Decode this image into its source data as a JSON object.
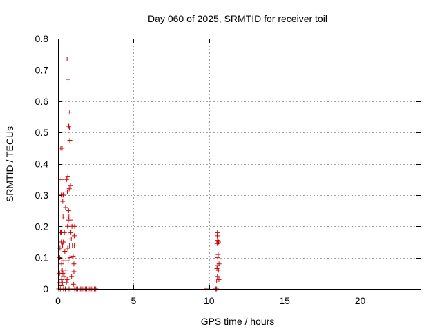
{
  "chart_data": {
    "type": "scatter",
    "title": "Day 060 of 2025, SRMTID for receiver toil",
    "xlabel": "GPS time / hours",
    "ylabel": "SRMTID / TECUs",
    "xlim": [
      0,
      24
    ],
    "ylim": [
      0,
      0.8
    ],
    "x_ticks": [
      0,
      5,
      10,
      15,
      20
    ],
    "x_tick_labels": [
      "0",
      "5",
      "10",
      "15",
      "20"
    ],
    "y_ticks": [
      0,
      0.1,
      0.2,
      0.3,
      0.4,
      0.5,
      0.6,
      0.7,
      0.8
    ],
    "y_tick_labels": [
      "0",
      "0.1",
      "0.2",
      "0.3",
      "0.4",
      "0.5",
      "0.6",
      "0.7",
      "0.8"
    ],
    "grid": true,
    "marker": "plus",
    "series_color": "#cc0000",
    "series": [
      {
        "points": [
          [
            0.05,
            0.0
          ],
          [
            0.08,
            0.02
          ],
          [
            0.1,
            0.05
          ],
          [
            0.12,
            0.1
          ],
          [
            0.13,
            0.13
          ],
          [
            0.15,
            0.0
          ],
          [
            0.16,
            0.18
          ],
          [
            0.18,
            0.45
          ],
          [
            0.2,
            0.35
          ],
          [
            0.2,
            0.01
          ],
          [
            0.22,
            0.03
          ],
          [
            0.22,
            0.08
          ],
          [
            0.24,
            0.15
          ],
          [
            0.25,
            0.18
          ],
          [
            0.26,
            0.3
          ],
          [
            0.27,
            0.45
          ],
          [
            0.28,
            0.06
          ],
          [
            0.29,
            0.02
          ],
          [
            0.3,
            0.14
          ],
          [
            0.31,
            0.28
          ],
          [
            0.32,
            0.05
          ],
          [
            0.33,
            0.23
          ],
          [
            0.34,
            0.3
          ],
          [
            0.35,
            0.15
          ],
          [
            0.36,
            0.0
          ],
          [
            0.38,
            0.09
          ],
          [
            0.4,
            0.04
          ],
          [
            0.42,
            0.18
          ],
          [
            0.45,
            0.12
          ],
          [
            0.48,
            0.0
          ],
          [
            0.5,
            0.26
          ],
          [
            0.52,
            0.06
          ],
          [
            0.55,
            0.02
          ],
          [
            0.58,
            0.35
          ],
          [
            0.6,
            0.03
          ],
          [
            0.6,
            0.735
          ],
          [
            0.62,
            0.31
          ],
          [
            0.63,
            0.2
          ],
          [
            0.64,
            0.13
          ],
          [
            0.65,
            0.36
          ],
          [
            0.66,
            0.67
          ],
          [
            0.67,
            0.09
          ],
          [
            0.68,
            0.22
          ],
          [
            0.7,
            0.25
          ],
          [
            0.71,
            0.52
          ],
          [
            0.72,
            0.23
          ],
          [
            0.73,
            0.0
          ],
          [
            0.74,
            0.32
          ],
          [
            0.75,
            0.515
          ],
          [
            0.76,
            0.14
          ],
          [
            0.77,
            0.565
          ],
          [
            0.78,
            0.475
          ],
          [
            0.79,
            0.1
          ],
          [
            0.8,
            0.22
          ],
          [
            0.8,
            0.0
          ],
          [
            0.82,
            0.33
          ],
          [
            0.85,
            0.18
          ],
          [
            0.88,
            0.16
          ],
          [
            0.9,
            0.04
          ],
          [
            0.92,
            0.2
          ],
          [
            0.95,
            0.14
          ],
          [
            1.0,
            0.105
          ],
          [
            1.02,
            0.015
          ],
          [
            1.05,
            0.055
          ],
          [
            1.05,
            0.08
          ],
          [
            1.07,
            0.17
          ],
          [
            1.08,
            0.14
          ],
          [
            1.1,
            0.2
          ],
          [
            1.1,
            0.0
          ],
          [
            1.2,
            0.0
          ],
          [
            1.3,
            0.0
          ],
          [
            1.4,
            0.0
          ],
          [
            1.5,
            0.0
          ],
          [
            1.6,
            0.0
          ],
          [
            1.7,
            0.0
          ],
          [
            1.8,
            0.0
          ],
          [
            1.9,
            0.0
          ],
          [
            2.0,
            0.0
          ],
          [
            2.1,
            0.0
          ],
          [
            2.2,
            0.0
          ],
          [
            2.3,
            0.0
          ],
          [
            2.4,
            0.0
          ],
          [
            2.5,
            0.0
          ],
          [
            9.8,
            0.0
          ],
          [
            10.4,
            0.0
          ],
          [
            10.45,
            0.0
          ],
          [
            10.5,
            0.0
          ],
          [
            10.5,
            0.025
          ],
          [
            10.52,
            0.065
          ],
          [
            10.53,
            0.145
          ],
          [
            10.54,
            0.17
          ],
          [
            10.55,
            0.18
          ],
          [
            10.55,
            0.04
          ],
          [
            10.56,
            0.155
          ],
          [
            10.57,
            0.075
          ],
          [
            10.58,
            0.1
          ],
          [
            10.6,
            0.11
          ],
          [
            10.62,
            0.06
          ],
          [
            10.63,
            0.15
          ],
          [
            10.65,
            0.03
          ],
          [
            10.66,
            0.08
          ]
        ]
      }
    ]
  }
}
